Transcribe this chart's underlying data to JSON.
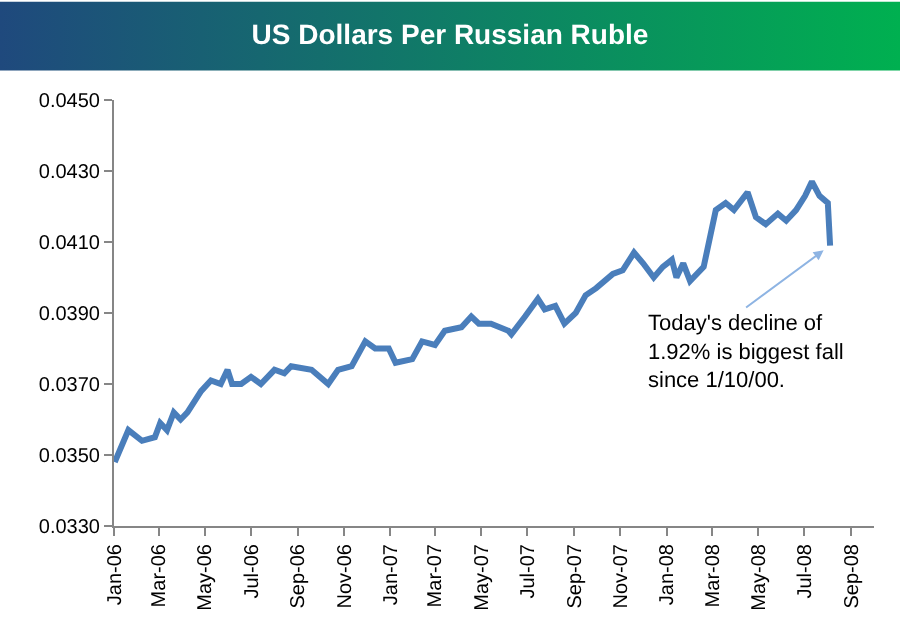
{
  "chart_data": {
    "type": "line",
    "title": "US Dollars Per Russian Ruble",
    "x": [
      "2006-01-02",
      "2006-01-20",
      "2006-02-07",
      "2006-02-24",
      "2006-03-03",
      "2006-03-12",
      "2006-03-21",
      "2006-03-30",
      "2006-04-08",
      "2006-04-26",
      "2006-05-09",
      "2006-05-22",
      "2006-05-31",
      "2006-06-06",
      "2006-06-18",
      "2006-07-01",
      "2006-07-14",
      "2006-08-01",
      "2006-08-14",
      "2006-08-23",
      "2006-09-19",
      "2006-10-11",
      "2006-10-24",
      "2006-11-11",
      "2006-11-29",
      "2006-12-12",
      "2006-12-30",
      "2007-01-08",
      "2007-01-30",
      "2007-02-12",
      "2007-03-01",
      "2007-03-14",
      "2007-04-05",
      "2007-04-18",
      "2007-04-28",
      "2007-05-14",
      "2007-06-06",
      "2007-06-10",
      "2007-06-28",
      "2007-07-15",
      "2007-07-24",
      "2007-08-07",
      "2007-08-19",
      "2007-09-03",
      "2007-09-16",
      "2007-09-30",
      "2007-10-22",
      "2007-11-04",
      "2007-11-19",
      "2007-12-01",
      "2007-12-15",
      "2007-12-27",
      "2008-01-08",
      "2008-01-14",
      "2008-01-23",
      "2008-02-01",
      "2008-02-19",
      "2008-02-28",
      "2008-03-06",
      "2008-03-19",
      "2008-03-30",
      "2008-04-17",
      "2008-04-28",
      "2008-05-11",
      "2008-05-27",
      "2008-06-07",
      "2008-06-20",
      "2008-07-02",
      "2008-07-11",
      "2008-07-21",
      "2008-08-01",
      "2008-08-04"
    ],
    "series": [
      {
        "color": "#4a7ebb",
        "values": [
          0.0348,
          0.0357,
          0.0354,
          0.0355,
          0.0359,
          0.0357,
          0.0362,
          0.036,
          0.0362,
          0.0368,
          0.0371,
          0.037,
          0.0374,
          0.037,
          0.037,
          0.0372,
          0.037,
          0.0374,
          0.0373,
          0.0375,
          0.0374,
          0.037,
          0.0374,
          0.0375,
          0.0382,
          0.038,
          0.038,
          0.0376,
          0.0377,
          0.0382,
          0.0381,
          0.0385,
          0.0386,
          0.0389,
          0.0387,
          0.0387,
          0.0385,
          0.0384,
          0.0389,
          0.0394,
          0.0391,
          0.0392,
          0.0387,
          0.039,
          0.0395,
          0.0397,
          0.0401,
          0.0402,
          0.0407,
          0.0404,
          0.04,
          0.0403,
          0.0405,
          0.04,
          0.0404,
          0.0399,
          0.0403,
          0.0412,
          0.0419,
          0.0421,
          0.0419,
          0.0424,
          0.0417,
          0.0415,
          0.0418,
          0.0416,
          0.0419,
          0.0423,
          0.0427,
          0.0423,
          0.0421,
          0.0409
        ]
      }
    ],
    "ylim": [
      0.033,
      0.045
    ],
    "yticks": [
      {
        "value": 0.033,
        "label": "0.0330"
      },
      {
        "value": 0.035,
        "label": "0.0350"
      },
      {
        "value": 0.037,
        "label": "0.0370"
      },
      {
        "value": 0.039,
        "label": "0.0390"
      },
      {
        "value": 0.041,
        "label": "0.0410"
      },
      {
        "value": 0.043,
        "label": "0.0430"
      },
      {
        "value": 0.045,
        "label": "0.0450"
      }
    ],
    "xlim": [
      "2006-01-01",
      "2008-10-01"
    ],
    "xticks": [
      {
        "value": "2006-01-01",
        "label": "Jan-06"
      },
      {
        "value": "2006-03-01",
        "label": "Mar-06"
      },
      {
        "value": "2006-05-01",
        "label": "May-06"
      },
      {
        "value": "2006-07-01",
        "label": "Jul-06"
      },
      {
        "value": "2006-09-01",
        "label": "Sep-06"
      },
      {
        "value": "2006-11-01",
        "label": "Nov-06"
      },
      {
        "value": "2007-01-01",
        "label": "Jan-07"
      },
      {
        "value": "2007-03-01",
        "label": "Mar-07"
      },
      {
        "value": "2007-05-01",
        "label": "May-07"
      },
      {
        "value": "2007-07-01",
        "label": "Jul-07"
      },
      {
        "value": "2007-09-01",
        "label": "Sep-07"
      },
      {
        "value": "2007-11-01",
        "label": "Nov-07"
      },
      {
        "value": "2008-01-01",
        "label": "Jan-08"
      },
      {
        "value": "2008-03-01",
        "label": "Mar-08"
      },
      {
        "value": "2008-05-01",
        "label": "May-08"
      },
      {
        "value": "2008-07-01",
        "label": "Jul-08"
      },
      {
        "value": "2008-09-01",
        "label": "Sep-08"
      }
    ],
    "annotations": [
      {
        "text": "Today's decline of\n1.92% is biggest fall\nsince 1/10/00.",
        "x": "2008-08-04",
        "y": 0.0409
      }
    ],
    "marker": "none",
    "line_style": "solid"
  }
}
